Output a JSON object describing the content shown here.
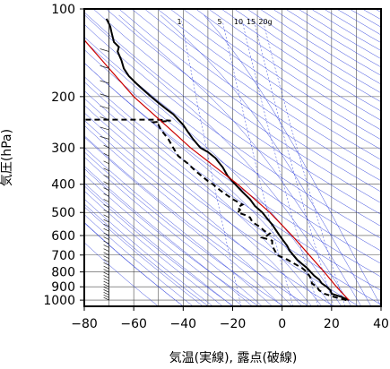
{
  "chart_data": {
    "type": "line",
    "title": "",
    "xlabel": "気温(実線), 露点(破線)",
    "ylabel": "気圧(hPa)",
    "x_ticks": [
      -80,
      -60,
      -40,
      -20,
      0,
      20,
      40
    ],
    "x_tick_labels": [
      "−80",
      "−60",
      "−40",
      "−20",
      "0",
      "20",
      "40"
    ],
    "xlim": [
      -80,
      40
    ],
    "y_ticks": [
      100,
      200,
      300,
      400,
      500,
      600,
      700,
      800,
      900,
      1000
    ],
    "y_tick_labels": [
      "100",
      "200",
      "300",
      "400",
      "500",
      "600",
      "700",
      "800",
      "900",
      "1000"
    ],
    "ylim": [
      1050,
      100
    ],
    "y_scale": "log",
    "mixing_ratio_labels": [
      "1",
      "5",
      "10",
      "15",
      "20g"
    ],
    "colors": {
      "temperature": "#000000",
      "dewpoint": "#000000",
      "parcel": "#cc0000",
      "isotherm": "#4a4a4a",
      "isobar": "#4a4a4a",
      "dry_adiabat": "#3344dd",
      "moist_adiabat": "#3344dd",
      "mixing_ratio": "#3344dd"
    },
    "series": [
      {
        "style": "solid",
        "points": [
          [
            27,
            1000
          ],
          [
            24,
            975
          ],
          [
            20,
            950
          ],
          [
            19.5,
            925
          ],
          [
            18,
            900
          ],
          [
            16,
            875
          ],
          [
            15,
            850
          ],
          [
            13,
            825
          ],
          [
            11.5,
            800
          ],
          [
            10,
            775
          ],
          [
            8,
            750
          ],
          [
            6,
            725
          ],
          [
            4.5,
            700
          ],
          [
            3,
            675
          ],
          [
            2,
            650
          ],
          [
            0.5,
            625
          ],
          [
            -1,
            600
          ],
          [
            -2.5,
            575
          ],
          [
            -4,
            550
          ],
          [
            -6,
            525
          ],
          [
            -8,
            500
          ],
          [
            -11,
            475
          ],
          [
            -13,
            450
          ],
          [
            -16,
            425
          ],
          [
            -19,
            400
          ],
          [
            -22,
            375
          ],
          [
            -24,
            350
          ],
          [
            -27,
            325
          ],
          [
            -30,
            310
          ],
          [
            -33,
            300
          ],
          [
            -36,
            280
          ],
          [
            -38,
            265
          ],
          [
            -40,
            250
          ],
          [
            -42,
            240
          ],
          [
            -44,
            230
          ],
          [
            -47,
            220
          ],
          [
            -50,
            210
          ],
          [
            -53,
            200
          ],
          [
            -56,
            190
          ],
          [
            -59,
            180
          ],
          [
            -62,
            170
          ],
          [
            -64,
            160
          ],
          [
            -65,
            150
          ],
          [
            -66.5,
            140
          ],
          [
            -66,
            135
          ],
          [
            -68,
            130
          ],
          [
            -69,
            120
          ],
          [
            -69.5,
            115
          ],
          [
            -71,
            108
          ]
        ]
      },
      {
        "style": "dashed",
        "points": [
          [
            26,
            1000
          ],
          [
            21,
            975
          ],
          [
            17,
            950
          ],
          [
            15,
            925
          ],
          [
            14,
            900
          ],
          [
            12,
            875
          ],
          [
            12,
            850
          ],
          [
            11,
            825
          ],
          [
            10,
            800
          ],
          [
            8,
            775
          ],
          [
            5,
            750
          ],
          [
            2,
            725
          ],
          [
            -2,
            700
          ],
          [
            -3,
            675
          ],
          [
            -4,
            650
          ],
          [
            -4,
            625
          ],
          [
            -8,
            610
          ],
          [
            -6,
            600
          ],
          [
            -5,
            590
          ],
          [
            -7,
            580
          ],
          [
            -9,
            560
          ],
          [
            -12,
            540
          ],
          [
            -13,
            520
          ],
          [
            -15,
            510
          ],
          [
            -18,
            500
          ],
          [
            -17,
            490
          ],
          [
            -18,
            480
          ],
          [
            -16,
            470
          ],
          [
            -20,
            450
          ],
          [
            -25,
            420
          ],
          [
            -28,
            400
          ],
          [
            -30,
            390
          ],
          [
            -35,
            360
          ],
          [
            -38,
            340
          ],
          [
            -42,
            320
          ],
          [
            -44,
            300
          ],
          [
            -46,
            280
          ],
          [
            -49,
            260
          ],
          [
            -50,
            250
          ],
          [
            -52,
            245
          ],
          [
            -45,
            242
          ],
          [
            -50,
            240
          ],
          [
            -75,
            240
          ],
          [
            -80,
            240
          ]
        ]
      },
      {
        "style": "solid",
        "points": [
          [
            27,
            1000
          ],
          [
            22,
            900
          ],
          [
            17,
            800
          ],
          [
            11,
            700
          ],
          [
            4,
            600
          ],
          [
            -5,
            500
          ],
          [
            -18,
            400
          ],
          [
            -37,
            300
          ],
          [
            -45,
            260
          ],
          [
            -60,
            200
          ],
          [
            -70,
            160
          ],
          [
            -81,
            125
          ]
        ]
      }
    ]
  }
}
